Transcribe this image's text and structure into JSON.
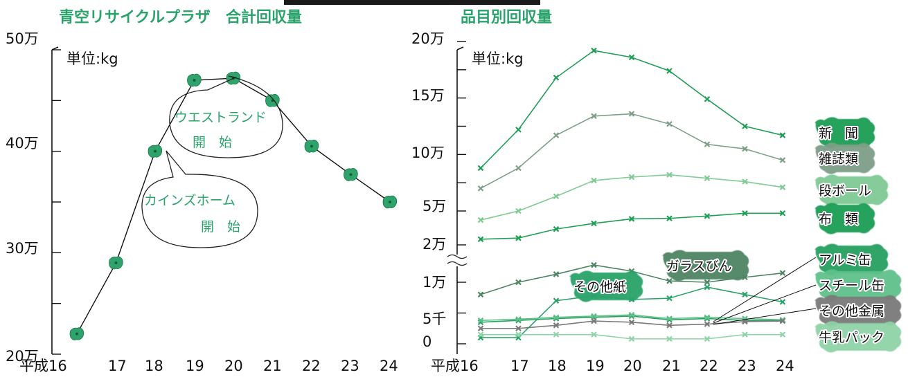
{
  "left_chart": {
    "title": "青空リサイクルプラザ　合計回収量",
    "unit_label": "単位:kg",
    "y_tick_labels": [
      "50万",
      "40万",
      "30万",
      "20万"
    ],
    "x_tick_labels": [
      "平成16",
      "17",
      "18",
      "19",
      "20",
      "21",
      "22",
      "23",
      "24"
    ],
    "annotations": [
      {
        "lines": [
          "ウエストランド",
          "開　始"
        ]
      },
      {
        "lines": [
          "カインズホーム",
          "開　始"
        ]
      }
    ]
  },
  "right_chart": {
    "title": "品目別回収量",
    "unit_label": "単位:kg",
    "y_tick_labels": [
      "20万",
      "15万",
      "10万",
      "5万",
      "2万",
      "1万",
      "5千",
      "0"
    ],
    "x_tick_labels": [
      "平成16",
      "17",
      "18",
      "19",
      "20",
      "21",
      "22",
      "23",
      "24"
    ]
  },
  "chart_data": [
    {
      "type": "line",
      "title": "青空リサイクルプラザ　合計回収量",
      "x": [
        16,
        17,
        18,
        19,
        20,
        21,
        22,
        23,
        24
      ],
      "categories": [
        "平成16",
        "17",
        "18",
        "19",
        "20",
        "21",
        "22",
        "23",
        "24"
      ],
      "series": [
        {
          "values": [
            220000,
            290000,
            400000,
            470000,
            472000,
            450000,
            405000,
            377000,
            350000
          ],
          "color": "#2fa36b"
        }
      ],
      "ylim": [
        200000,
        500000
      ],
      "grid": false
    },
    {
      "type": "line",
      "title": "品目別回収量",
      "x": [
        16,
        17,
        18,
        19,
        20,
        21,
        22,
        23,
        24
      ],
      "categories": [
        "平成16",
        "17",
        "18",
        "19",
        "20",
        "21",
        "22",
        "23",
        "24"
      ],
      "y_axis_break": "between 1万 and 2万",
      "grid": false,
      "series": [
        {
          "name": "新　聞",
          "color": "#1f9e55",
          "values": [
            88000,
            122000,
            168000,
            192000,
            186000,
            174000,
            149000,
            125000,
            117000
          ]
        },
        {
          "name": "雑誌類",
          "color": "#7e9f88",
          "values": [
            70000,
            88000,
            117000,
            134000,
            136000,
            127000,
            109000,
            105000,
            95000
          ]
        },
        {
          "name": "段ボール",
          "color": "#7fca95",
          "values": [
            42000,
            50000,
            63000,
            77000,
            80000,
            82000,
            79000,
            76000,
            71000
          ]
        },
        {
          "name": "布　類",
          "color": "#1f9e55",
          "values": [
            25000,
            26000,
            34000,
            39000,
            43000,
            43500,
            45500,
            48000,
            48000
          ]
        },
        {
          "name": "ガラスびん",
          "color": "#4e8463",
          "values": [
            8000,
            10000,
            11300,
            12800,
            11800,
            10200,
            10000,
            10800,
            11500
          ]
        },
        {
          "name": "その他紙",
          "color": "#2aa36b",
          "values": [
            1000,
            1000,
            7000,
            7800,
            7200,
            7400,
            9200,
            8000,
            6800
          ]
        },
        {
          "name": "アルミ缶",
          "color": "#28a060",
          "values": [
            3500,
            3800,
            4100,
            4300,
            4500,
            3900,
            4100,
            3800,
            3800
          ]
        },
        {
          "name": "スチール缶",
          "color": "#5fc08a",
          "values": [
            3800,
            4000,
            4300,
            4500,
            4700,
            4100,
            4300,
            4100,
            3900
          ]
        },
        {
          "name": "その他金属",
          "color": "#7a7a7a",
          "values": [
            2500,
            2500,
            3000,
            3700,
            3500,
            3000,
            3200,
            3600,
            3700
          ]
        },
        {
          "name": "牛乳パック",
          "color": "#8fd3a8",
          "values": [
            1500,
            1500,
            1500,
            1500,
            800,
            800,
            800,
            1500,
            1500
          ]
        }
      ]
    }
  ]
}
